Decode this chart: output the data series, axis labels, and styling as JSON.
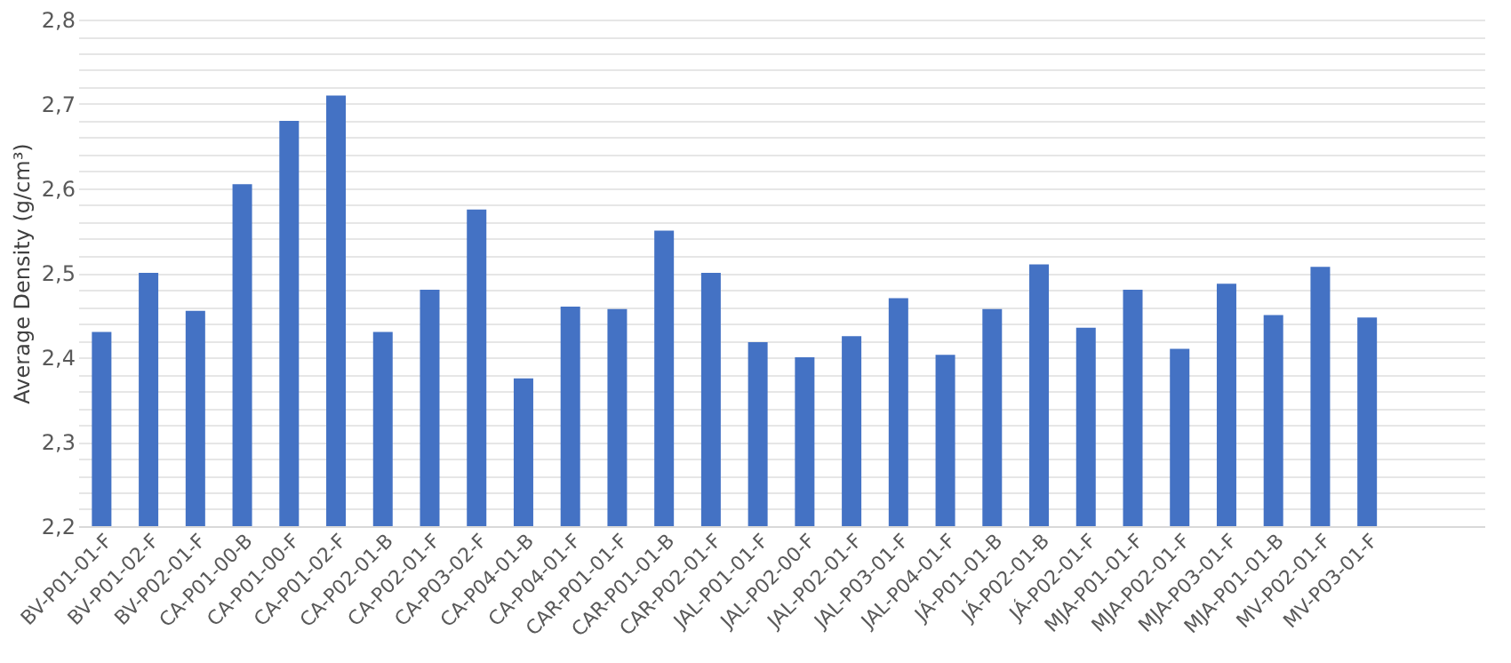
{
  "chart_data": {
    "type": "bar",
    "ylabel": "Average Density (g/cm³)",
    "categories": [
      "BV-P01-01-F",
      "BV-P01-02-F",
      "BV-P02-01-F",
      "CA-P01-00-B",
      "CA-P01-00-F",
      "CA-P01-02-F",
      "CA-P02-01-B",
      "CA-P02-01-F",
      "CA-P03-02-F",
      "CA-P04-01-B",
      "CA-P04-01-F",
      "CAR-P01-01-F",
      "CAR-P01-01-B",
      "CAR-P02-01-F",
      "JAL-P01-01-F",
      "JAL-P02-00-F",
      "JAL-P02-01-F",
      "JAL-P03-01-F",
      "JAL-P04-01-F",
      "JÁ-P01-01-B",
      "JÁ-P02-01-B",
      "JÁ-P02-01-F",
      "MJA-P01-01-F",
      "MJA-P02-01-F",
      "MJA-P03-01-F",
      "MJA-P01-01-B",
      "MV-P02-01-F",
      "MV-P03-01-F",
      null,
      null
    ],
    "values": [
      2.43,
      2.5,
      2.455,
      2.605,
      2.68,
      2.71,
      2.43,
      2.48,
      2.575,
      2.375,
      2.46,
      2.457,
      2.55,
      2.5,
      2.418,
      2.4,
      2.425,
      2.47,
      2.403,
      2.457,
      2.51,
      2.435,
      2.48,
      2.41,
      2.487,
      2.45,
      2.507,
      2.447,
      null,
      null
    ],
    "color": "#4472c4",
    "ylim": [
      2.2,
      2.8
    ],
    "yticks": [
      {
        "value": 2.2,
        "label": "2,2"
      },
      {
        "value": 2.22,
        "label": null
      },
      {
        "value": 2.24,
        "label": null
      },
      {
        "value": 2.26,
        "label": null
      },
      {
        "value": 2.28,
        "label": null
      },
      {
        "value": 2.3,
        "label": "2,3"
      },
      {
        "value": 2.32,
        "label": null
      },
      {
        "value": 2.34,
        "label": null
      },
      {
        "value": 2.36,
        "label": null
      },
      {
        "value": 2.38,
        "label": null
      },
      {
        "value": 2.4,
        "label": "2,4"
      },
      {
        "value": 2.42,
        "label": null
      },
      {
        "value": 2.44,
        "label": null
      },
      {
        "value": 2.46,
        "label": null
      },
      {
        "value": 2.48,
        "label": null
      },
      {
        "value": 2.5,
        "label": "2,5"
      },
      {
        "value": 2.52,
        "label": null
      },
      {
        "value": 2.54,
        "label": null
      },
      {
        "value": 2.56,
        "label": null
      },
      {
        "value": 2.58,
        "label": null
      },
      {
        "value": 2.6,
        "label": "2,6"
      },
      {
        "value": 2.62,
        "label": null
      },
      {
        "value": 2.64,
        "label": null
      },
      {
        "value": 2.66,
        "label": null
      },
      {
        "value": 2.68,
        "label": null
      },
      {
        "value": 2.7,
        "label": "2,7"
      },
      {
        "value": 2.72,
        "label": null
      },
      {
        "value": 2.74,
        "label": null
      },
      {
        "value": 2.76,
        "label": null
      },
      {
        "value": 2.78,
        "label": null
      },
      {
        "value": 2.8,
        "label": "2,8"
      }
    ],
    "grid": "y"
  }
}
